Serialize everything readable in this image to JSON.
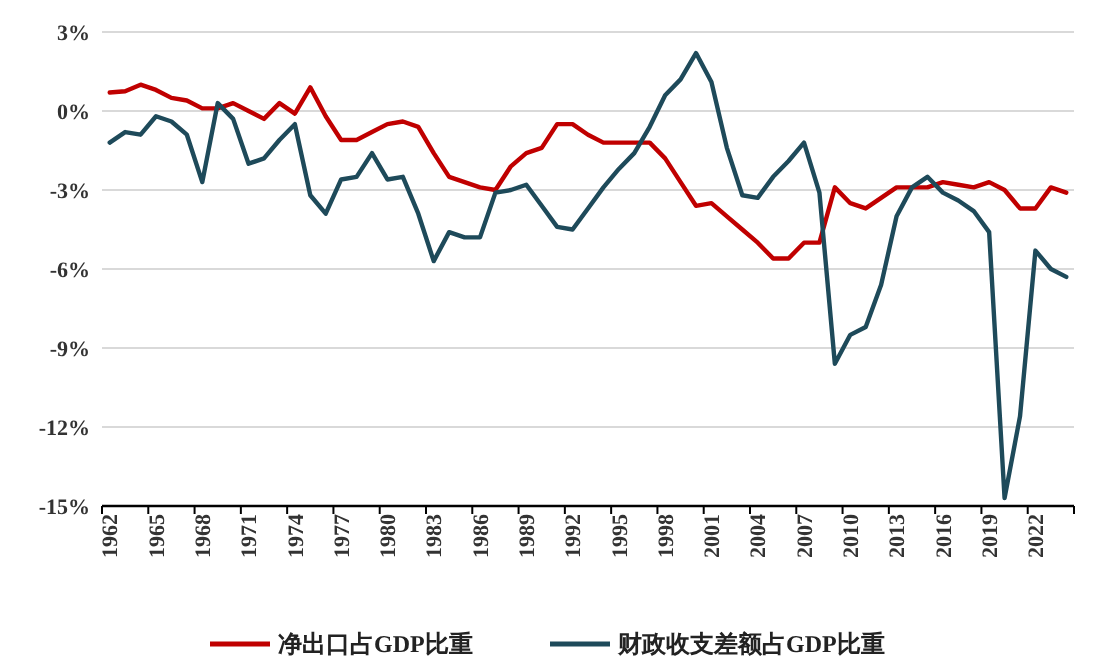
{
  "chart_data": {
    "type": "line",
    "categories": [
      "1962",
      null,
      null,
      "1965",
      null,
      null,
      "1968",
      null,
      null,
      "1971",
      null,
      null,
      "1974",
      null,
      null,
      "1977",
      null,
      null,
      "1980",
      null,
      null,
      "1983",
      null,
      null,
      "1986",
      null,
      null,
      "1989",
      null,
      null,
      "1992",
      null,
      null,
      "1995",
      null,
      null,
      "1998",
      null,
      null,
      "2001",
      null,
      null,
      "2004",
      null,
      null,
      "2007",
      null,
      null,
      "2010",
      null,
      null,
      "2013",
      null,
      null,
      "2016",
      null,
      null,
      "2019",
      null,
      null,
      "2022",
      null,
      null
    ],
    "series": [
      {
        "name": "净出口占GDP比重",
        "color": "#c00000",
        "values": [
          0.7,
          0.75,
          1.0,
          0.8,
          0.5,
          0.4,
          0.1,
          0.1,
          0.3,
          0.0,
          -0.3,
          0.3,
          -0.1,
          0.9,
          -0.2,
          -1.1,
          -1.1,
          -0.8,
          -0.5,
          -0.4,
          -0.6,
          -1.6,
          -2.5,
          -2.7,
          -2.9,
          -3.0,
          -2.1,
          -1.6,
          -1.4,
          -0.5,
          -0.5,
          -0.9,
          -1.2,
          -1.2,
          -1.2,
          -1.2,
          -1.8,
          -2.7,
          -3.6,
          -3.5,
          -4.0,
          -4.5,
          -5.0,
          -5.6,
          -5.6,
          -5.0,
          -5.0,
          -2.9,
          -3.5,
          -3.7,
          -3.3,
          -2.9,
          -2.9,
          -2.9,
          -2.7,
          -2.8,
          -2.9,
          -2.7,
          -3.0,
          -3.7,
          -3.7,
          -2.9,
          -3.1
        ]
      },
      {
        "name": "财政收支差额占GDP比重",
        "color": "#1e4a5a",
        "values": [
          -1.2,
          -0.8,
          -0.9,
          -0.2,
          -0.4,
          -0.9,
          -2.7,
          0.3,
          -0.3,
          -2.0,
          -1.8,
          -1.1,
          -0.5,
          -3.2,
          -3.9,
          -2.6,
          -2.5,
          -1.6,
          -2.6,
          -2.5,
          -3.9,
          -5.7,
          -4.6,
          -4.8,
          -4.8,
          -3.1,
          -3.0,
          -2.8,
          -3.6,
          -4.4,
          -4.5,
          -3.7,
          -2.9,
          -2.2,
          -1.6,
          -0.6,
          0.6,
          1.2,
          2.2,
          1.1,
          -1.4,
          -3.2,
          -3.3,
          -2.5,
          -1.9,
          -1.2,
          -3.1,
          -9.6,
          -8.5,
          -8.2,
          -6.6,
          -4.0,
          -2.9,
          -2.5,
          -3.1,
          -3.4,
          -3.8,
          -4.6,
          -14.7,
          -11.6,
          -5.3,
          -6.0,
          -6.3
        ]
      }
    ],
    "ylim": [
      -15,
      3
    ],
    "yticks": [
      {
        "value": 3,
        "label": "3%"
      },
      {
        "value": 0,
        "label": "0%"
      },
      {
        "value": -3,
        "label": "-3%"
      },
      {
        "value": -6,
        "label": "-6%"
      },
      {
        "value": -9,
        "label": "-9%"
      },
      {
        "value": -12,
        "label": "-12%"
      },
      {
        "value": -15,
        "label": "-15%"
      }
    ],
    "grid": "y",
    "legend": "bottom",
    "marker": "none",
    "line_style": "solid"
  }
}
